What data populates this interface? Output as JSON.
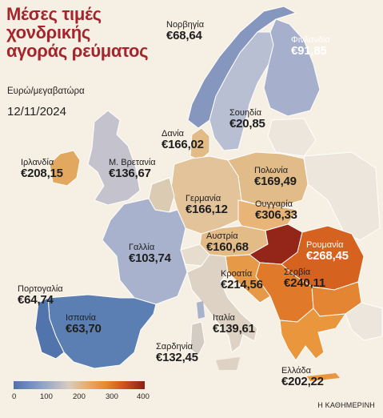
{
  "title": "Μέσες τιμές\nχονδρικής\nαγοράς ρεύματος",
  "subtitle": "Ευρώ/μεγαβατώρα",
  "date": "12/11/2024",
  "credit": "Η ΚΑΘΗΜΕΡΙΝΗ",
  "legend": {
    "ticks": [
      "0",
      "100",
      "200",
      "300",
      "400"
    ],
    "min": 0,
    "max": 400,
    "colors": [
      "#4f73a8",
      "#8ea3c8",
      "#d7ccbf",
      "#e6b072",
      "#e68a2c",
      "#d65a1c",
      "#8e1e16"
    ]
  },
  "regions": {
    "norway": {
      "name": "Νορβηγία",
      "price": "€68,64"
    },
    "finland": {
      "name": "Φινλανδία",
      "price": "€91,85"
    },
    "sweden": {
      "name": "Σουηδία",
      "price": "€20,85"
    },
    "denmark": {
      "name": "Δανία",
      "price": "€166,02"
    },
    "ireland": {
      "name": "Ιρλανδία",
      "price": "€208,15"
    },
    "uk": {
      "name": "Μ. Βρετανία",
      "price": "€136,67"
    },
    "poland": {
      "name": "Πολωνία",
      "price": "€169,49"
    },
    "germany": {
      "name": "Γερμανία",
      "price": "€166,12"
    },
    "hungary": {
      "name": "Ουγγαρία",
      "price": "€306,33"
    },
    "france": {
      "name": "Γαλλία",
      "price": "€103,74"
    },
    "austria": {
      "name": "Αυστρία",
      "price": "€160,68"
    },
    "romania": {
      "name": "Ρουμανία",
      "price": "€268,45"
    },
    "portugal": {
      "name": "Πορτογαλία",
      "price": "€64,74"
    },
    "croatia": {
      "name": "Κροατία",
      "price": "€214,56"
    },
    "serbia": {
      "name": "Σερβία",
      "price": "€240,11"
    },
    "spain": {
      "name": "Ισπανία",
      "price": "€63,70"
    },
    "italy": {
      "name": "Ιταλία",
      "price": "€139,61"
    },
    "sardinia": {
      "name": "Σαρδηνία",
      "price": "€132,45"
    },
    "greece": {
      "name": "Ελλάδα",
      "price": "€202,22"
    }
  }
}
